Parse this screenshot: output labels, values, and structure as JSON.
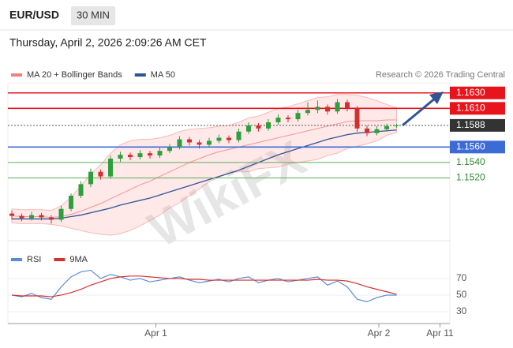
{
  "header": {
    "symbol": "EUR/USD",
    "timeframe": "30 MIN",
    "datetime": "Thursday, April 2, 2026 2:09:26 AM CET"
  },
  "watermark": "WikiFX",
  "chart_data": [
    {
      "type": "candlestick",
      "legend": [
        {
          "name": "MA 20 + Bollinger Bands",
          "color": "#f08080"
        },
        {
          "name": "MA 50",
          "color": "#2f5597"
        }
      ],
      "credit": "Research © 2026 Trading Central",
      "x": [
        0,
        1,
        2,
        3,
        4,
        5,
        6,
        7,
        8,
        9,
        10,
        11,
        12,
        13,
        14,
        15,
        16,
        17,
        18,
        19,
        20,
        21,
        22,
        23,
        24,
        25,
        26,
        27,
        28,
        29,
        30,
        31,
        32,
        33,
        34,
        35,
        36,
        37,
        38,
        39
      ],
      "open": [
        1.1474,
        1.1471,
        1.1468,
        1.1472,
        1.1469,
        1.1466,
        1.148,
        1.1497,
        1.1512,
        1.1528,
        1.1522,
        1.1545,
        1.155,
        1.1547,
        1.1552,
        1.1549,
        1.1555,
        1.156,
        1.157,
        1.1566,
        1.1563,
        1.1568,
        1.1572,
        1.1569,
        1.158,
        1.1588,
        1.1584,
        1.1592,
        1.1598,
        1.1596,
        1.1604,
        1.1608,
        1.1612,
        1.1606,
        1.1618,
        1.161,
        1.1584,
        1.1578,
        1.1583,
        1.1587
      ],
      "high": [
        1.1478,
        1.1474,
        1.1476,
        1.1475,
        1.1472,
        1.1484,
        1.15,
        1.1516,
        1.1532,
        1.1531,
        1.1549,
        1.1554,
        1.1553,
        1.1556,
        1.1555,
        1.1559,
        1.1564,
        1.1574,
        1.1573,
        1.1569,
        1.1572,
        1.1576,
        1.1575,
        1.1584,
        1.1592,
        1.1591,
        1.1596,
        1.1602,
        1.1601,
        1.1608,
        1.1618,
        1.162,
        1.1615,
        1.1622,
        1.1621,
        1.1613,
        1.1588,
        1.1587,
        1.159,
        1.159
      ],
      "low": [
        1.1466,
        1.1464,
        1.1465,
        1.1465,
        1.1461,
        1.1463,
        1.1477,
        1.1494,
        1.1508,
        1.1518,
        1.1519,
        1.1541,
        1.1543,
        1.1544,
        1.1545,
        1.1546,
        1.1552,
        1.1557,
        1.1562,
        1.1558,
        1.156,
        1.1565,
        1.1565,
        1.1566,
        1.1577,
        1.158,
        1.1581,
        1.1589,
        1.1592,
        1.1593,
        1.1601,
        1.1604,
        1.1602,
        1.1603,
        1.1606,
        1.158,
        1.1574,
        1.1575,
        1.158,
        1.1585
      ],
      "close": [
        1.1471,
        1.1468,
        1.1472,
        1.1469,
        1.1466,
        1.148,
        1.1497,
        1.1512,
        1.1528,
        1.1522,
        1.1545,
        1.155,
        1.1547,
        1.1552,
        1.1549,
        1.1555,
        1.156,
        1.157,
        1.1566,
        1.1563,
        1.1568,
        1.1572,
        1.1569,
        1.158,
        1.1588,
        1.1584,
        1.1592,
        1.1598,
        1.1596,
        1.1604,
        1.1608,
        1.1612,
        1.1606,
        1.1618,
        1.161,
        1.1584,
        1.1578,
        1.1583,
        1.1587,
        1.1588
      ],
      "up_color": "#2e9e3e",
      "down_color": "#d03030",
      "ma20": [
        1.1471,
        1.147,
        1.147,
        1.147,
        1.1469,
        1.147,
        1.1473,
        1.1477,
        1.1482,
        1.1487,
        1.1493,
        1.1499,
        1.1505,
        1.1511,
        1.1516,
        1.1522,
        1.1528,
        1.1534,
        1.154,
        1.1545,
        1.155,
        1.1554,
        1.1557,
        1.156,
        1.1563,
        1.1566,
        1.1569,
        1.1572,
        1.1575,
        1.1578,
        1.1581,
        1.1584,
        1.1587,
        1.159,
        1.1593,
        1.1594,
        1.1594,
        1.1594,
        1.1595,
        1.1595
      ],
      "bb_upper": [
        1.148,
        1.1479,
        1.1479,
        1.1479,
        1.1478,
        1.1484,
        1.1495,
        1.151,
        1.1525,
        1.1537,
        1.1552,
        1.1563,
        1.1568,
        1.157,
        1.157,
        1.1572,
        1.1575,
        1.158,
        1.1583,
        1.1584,
        1.1585,
        1.1587,
        1.1588,
        1.1592,
        1.1598,
        1.16,
        1.1605,
        1.161,
        1.1612,
        1.1616,
        1.162,
        1.1624,
        1.1625,
        1.1628,
        1.1628,
        1.1627,
        1.1624,
        1.162,
        1.1615,
        1.1611
      ],
      "bb_lower": [
        1.1462,
        1.1461,
        1.1461,
        1.1461,
        1.146,
        1.1458,
        1.1455,
        1.1452,
        1.1449,
        1.1447,
        1.1446,
        1.1448,
        1.1452,
        1.1458,
        1.1465,
        1.1472,
        1.1481,
        1.1488,
        1.1497,
        1.1506,
        1.1515,
        1.1521,
        1.1526,
        1.1528,
        1.1528,
        1.1532,
        1.1533,
        1.1534,
        1.1538,
        1.154,
        1.1542,
        1.1544,
        1.1549,
        1.1552,
        1.1558,
        1.1561,
        1.1564,
        1.1568,
        1.1575,
        1.1579
      ],
      "ma50": [
        1.1467,
        1.1467,
        1.1467,
        1.1467,
        1.1467,
        1.1468,
        1.147,
        1.1472,
        1.1475,
        1.1478,
        1.1481,
        1.1485,
        1.1488,
        1.1491,
        1.1494,
        1.1498,
        1.1502,
        1.1506,
        1.151,
        1.1514,
        1.1518,
        1.1522,
        1.1526,
        1.153,
        1.1535,
        1.154,
        1.1545,
        1.155,
        1.1554,
        1.1558,
        1.1562,
        1.1566,
        1.157,
        1.1573,
        1.1576,
        1.1578,
        1.1579,
        1.158,
        1.1581,
        1.1582
      ],
      "levels": [
        {
          "value": 1.163,
          "label": "1.1630",
          "color": "#e8141c",
          "chip": true
        },
        {
          "value": 1.161,
          "label": "1.1610",
          "color": "#e8141c",
          "chip": true
        },
        {
          "value": 1.156,
          "label": "1.1560",
          "color": "#3d6bd6",
          "chip": true
        },
        {
          "value": 1.154,
          "label": "1.1540",
          "color": "#5aae5a",
          "chip": false
        },
        {
          "value": 1.152,
          "label": "1.1520",
          "color": "#5aae5a",
          "chip": false
        }
      ],
      "last": {
        "value": 1.1588,
        "label": "1.1588"
      },
      "xlim": [
        -0.4,
        44.4
      ],
      "ylim": [
        1.1444,
        1.1643
      ]
    },
    {
      "type": "line",
      "x": [
        0,
        1,
        2,
        3,
        4,
        5,
        6,
        7,
        8,
        9,
        10,
        11,
        12,
        13,
        14,
        15,
        16,
        17,
        18,
        19,
        20,
        21,
        22,
        23,
        24,
        25,
        26,
        27,
        28,
        29,
        30,
        31,
        32,
        33,
        34,
        35,
        36,
        37,
        38,
        39
      ],
      "series": [
        {
          "name": "RSI",
          "color": "#5b8bd6",
          "values": [
            50,
            48,
            52,
            47,
            45,
            60,
            72,
            78,
            80,
            70,
            75,
            72,
            68,
            70,
            66,
            68,
            70,
            72,
            68,
            65,
            67,
            69,
            66,
            70,
            72,
            65,
            68,
            70,
            66,
            68,
            70,
            72,
            62,
            67,
            60,
            45,
            42,
            47,
            50,
            50
          ]
        },
        {
          "name": "9MA",
          "color": "#d83030",
          "values": [
            50,
            49,
            49,
            49,
            48,
            50,
            53,
            57,
            62,
            66,
            70,
            72,
            73,
            73,
            72,
            71,
            70,
            70,
            69,
            69,
            68,
            68,
            68,
            68,
            68,
            68,
            68,
            68,
            68,
            68,
            68,
            69,
            68,
            68,
            67,
            64,
            60,
            57,
            54,
            51
          ]
        }
      ],
      "xlim": [
        -0.4,
        44.4
      ],
      "ylim": [
        15.7,
        87.1
      ],
      "yticks": [
        30,
        50,
        70
      ],
      "xticks": [
        {
          "value": 14.6,
          "label": "Apr 1"
        },
        {
          "value": 37.2,
          "label": "Apr 2"
        },
        {
          "value": 43.4,
          "label": "Apr 11"
        }
      ]
    }
  ]
}
